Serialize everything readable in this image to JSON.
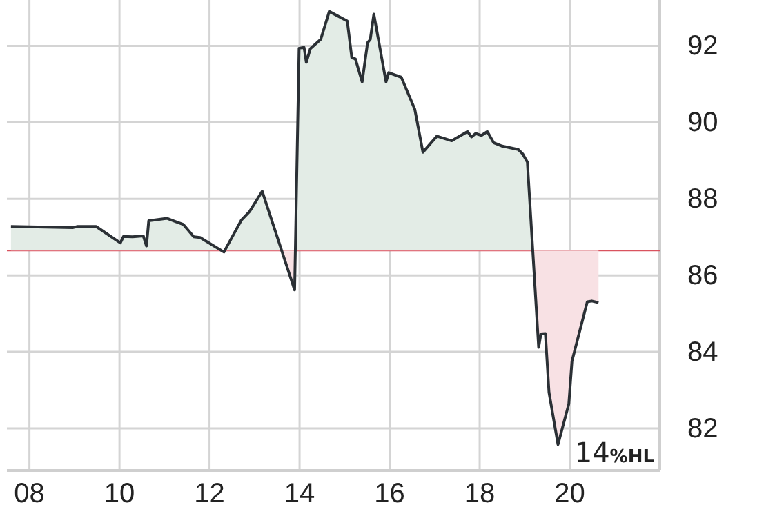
{
  "chart_data": {
    "type": "line",
    "x": [
      7.59,
      8.97,
      9.07,
      9.48,
      10.02,
      10.09,
      10.29,
      10.53,
      10.6,
      10.65,
      11.06,
      11.42,
      11.65,
      11.79,
      12.32,
      12.71,
      12.89,
      13.17,
      13.89,
      13.99,
      14.1,
      14.15,
      14.24,
      14.47,
      14.66,
      15.06,
      15.16,
      15.24,
      15.39,
      15.51,
      15.57,
      15.65,
      15.92,
      15.98,
      16.26,
      16.56,
      16.74,
      17.05,
      17.38,
      17.73,
      17.82,
      17.91,
      18.04,
      18.17,
      18.31,
      18.5,
      18.86,
      18.96,
      19.06,
      19.31,
      19.36,
      19.46,
      19.54,
      19.74,
      19.98,
      20.05,
      20.39,
      20.49,
      20.64
    ],
    "series": [
      {
        "color": "#2b3035",
        "values": [
          87.28,
          87.25,
          87.28,
          87.28,
          86.85,
          87.02,
          87.01,
          87.03,
          86.77,
          87.43,
          87.49,
          87.33,
          87.01,
          86.99,
          86.61,
          87.45,
          87.67,
          88.2,
          85.62,
          91.94,
          91.96,
          91.57,
          91.93,
          92.17,
          92.9,
          92.65,
          91.69,
          91.66,
          91.06,
          92.08,
          92.17,
          92.83,
          91.06,
          91.3,
          91.18,
          90.34,
          89.22,
          89.64,
          89.52,
          89.76,
          89.62,
          89.71,
          89.66,
          89.76,
          89.47,
          89.38,
          89.29,
          89.17,
          88.96,
          84.12,
          84.47,
          84.48,
          82.94,
          81.58,
          82.64,
          83.76,
          85.31,
          85.33,
          85.29
        ]
      }
    ],
    "xlim": [
      7.5,
      22
    ],
    "xticks": [
      {
        "value": 8,
        "label": "08"
      },
      {
        "value": 10,
        "label": "10"
      },
      {
        "value": 12,
        "label": "12"
      },
      {
        "value": 14,
        "label": "14"
      },
      {
        "value": 16,
        "label": "16"
      },
      {
        "value": 18,
        "label": "18"
      },
      {
        "value": 20,
        "label": "20"
      }
    ],
    "ylim": [
      80.9,
      93.2
    ],
    "yticks": [
      82,
      84,
      86,
      88,
      90,
      92
    ],
    "grid": true,
    "ref_lines": [
      {
        "axis": "y",
        "value": 86.65,
        "color": "#d9535f"
      }
    ],
    "annotations": [
      "14%HL"
    ]
  }
}
